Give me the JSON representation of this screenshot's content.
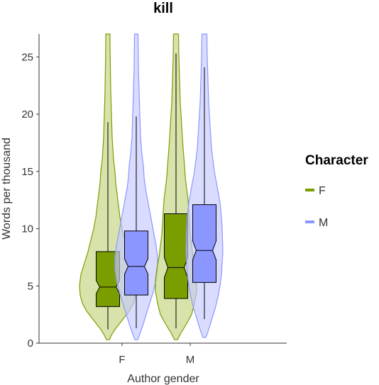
{
  "chart_data": {
    "type": "violin",
    "title": "kill",
    "xlabel": "Author gender",
    "ylabel": "Words per thousand",
    "ylim": [
      0,
      27
    ],
    "yticks": [
      0,
      5,
      10,
      15,
      20,
      25
    ],
    "categories": [
      "F",
      "M"
    ],
    "legend": {
      "title": "Character",
      "position": "right",
      "entries": [
        {
          "label": "F",
          "color": "#7a9e00"
        },
        {
          "label": "M",
          "color": "#8c96ff"
        }
      ]
    },
    "series": [
      {
        "name": "F",
        "color": "#7a9e00",
        "fill": "#c3d47e",
        "groups": [
          {
            "category": "F",
            "whisker_low": 1.2,
            "q1": 3.2,
            "median": 4.9,
            "q3": 8.0,
            "whisker_high": 19.3,
            "violin_max": 27,
            "violin": [
              [
                0.3,
                2
              ],
              [
                0.7,
                5
              ],
              [
                1.2,
                10
              ],
              [
                2.0,
                20
              ],
              [
                2.8,
                30
              ],
              [
                3.5,
                36
              ],
              [
                4.2,
                39
              ],
              [
                5.0,
                40
              ],
              [
                6.0,
                38
              ],
              [
                7.0,
                33
              ],
              [
                8.0,
                28
              ],
              [
                9.0,
                24
              ],
              [
                10.0,
                20
              ],
              [
                11.0,
                17
              ],
              [
                12.0,
                15
              ],
              [
                13.0,
                13
              ],
              [
                14.0,
                11
              ],
              [
                15.0,
                10
              ],
              [
                16.0,
                8
              ],
              [
                18.0,
                6
              ],
              [
                20.0,
                5
              ],
              [
                22.0,
                4
              ],
              [
                24.0,
                3.5
              ],
              [
                26.0,
                3
              ],
              [
                27.0,
                3
              ]
            ]
          },
          {
            "category": "M",
            "whisker_low": 1.3,
            "q1": 3.9,
            "median": 6.6,
            "q3": 11.3,
            "whisker_high": 25.3,
            "violin_max": 27,
            "violin": [
              [
                0.3,
                2
              ],
              [
                0.8,
                6
              ],
              [
                1.5,
                13
              ],
              [
                2.5,
                22
              ],
              [
                3.5,
                26
              ],
              [
                4.5,
                29
              ],
              [
                5.5,
                29
              ],
              [
                6.5,
                27
              ],
              [
                7.5,
                24
              ],
              [
                8.5,
                22
              ],
              [
                9.5,
                20
              ],
              [
                10.5,
                19
              ],
              [
                11.5,
                18
              ],
              [
                12.5,
                17
              ],
              [
                13.5,
                15
              ],
              [
                14.5,
                13
              ],
              [
                15.5,
                12
              ],
              [
                17.0,
                10
              ],
              [
                19.0,
                8
              ],
              [
                21.0,
                6
              ],
              [
                23.0,
                5
              ],
              [
                25.0,
                4
              ],
              [
                27.0,
                3.5
              ]
            ]
          }
        ]
      },
      {
        "name": "M",
        "color": "#8c96ff",
        "fill": "#c5caff",
        "groups": [
          {
            "category": "F",
            "whisker_low": 1.3,
            "q1": 4.2,
            "median": 6.7,
            "q3": 9.8,
            "whisker_high": 19.8,
            "violin_max": 27,
            "violin": [
              [
                0.3,
                2
              ],
              [
                0.8,
                5
              ],
              [
                1.5,
                9
              ],
              [
                2.5,
                14
              ],
              [
                3.5,
                19
              ],
              [
                4.5,
                24
              ],
              [
                5.5,
                28
              ],
              [
                6.5,
                30
              ],
              [
                7.5,
                30
              ],
              [
                8.5,
                28
              ],
              [
                9.5,
                25
              ],
              [
                10.5,
                22
              ],
              [
                11.5,
                19
              ],
              [
                12.5,
                16
              ],
              [
                13.5,
                13
              ],
              [
                14.5,
                11
              ],
              [
                15.5,
                10
              ],
              [
                16.5,
                8
              ],
              [
                18.0,
                6
              ],
              [
                20.0,
                5
              ],
              [
                22.0,
                4
              ],
              [
                24.0,
                3
              ],
              [
                27.0,
                2.5
              ]
            ]
          },
          {
            "category": "M",
            "whisker_low": 2.1,
            "q1": 5.3,
            "median": 8.1,
            "q3": 12.1,
            "whisker_high": 24.1,
            "violin_max": 27,
            "violin": [
              [
                0.5,
                2
              ],
              [
                1.0,
                5
              ],
              [
                2.0,
                10
              ],
              [
                3.0,
                15
              ],
              [
                4.0,
                19
              ],
              [
                5.0,
                22
              ],
              [
                6.0,
                24
              ],
              [
                7.0,
                25
              ],
              [
                8.0,
                26
              ],
              [
                9.0,
                25.5
              ],
              [
                10.0,
                25
              ],
              [
                11.0,
                24
              ],
              [
                12.0,
                22.5
              ],
              [
                13.0,
                20
              ],
              [
                14.0,
                17
              ],
              [
                15.0,
                14
              ],
              [
                16.0,
                12
              ],
              [
                17.0,
                10
              ],
              [
                18.0,
                9
              ],
              [
                19.0,
                8
              ],
              [
                21.0,
                6
              ],
              [
                23.0,
                5
              ],
              [
                25.0,
                4
              ],
              [
                27.0,
                3.5
              ]
            ]
          }
        ]
      }
    ]
  }
}
